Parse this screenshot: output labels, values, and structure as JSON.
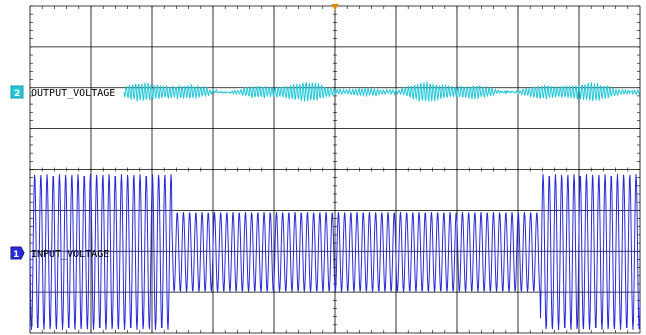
{
  "colors": {
    "background": "#ffffff",
    "grid": "#000000",
    "ch1": "#2a2ad8",
    "ch2": "#22c8d6",
    "trigger": "#e58a00"
  },
  "channels": [
    {
      "number": "2",
      "name": "OUTPUT_VOLTAGE",
      "color": "#22c8d6"
    },
    {
      "number": "1",
      "name": "INPUT_VOLTAGE",
      "color": "#2a2ad8"
    }
  ],
  "icons": {
    "trigger_marker": "trigger-position-icon"
  }
}
